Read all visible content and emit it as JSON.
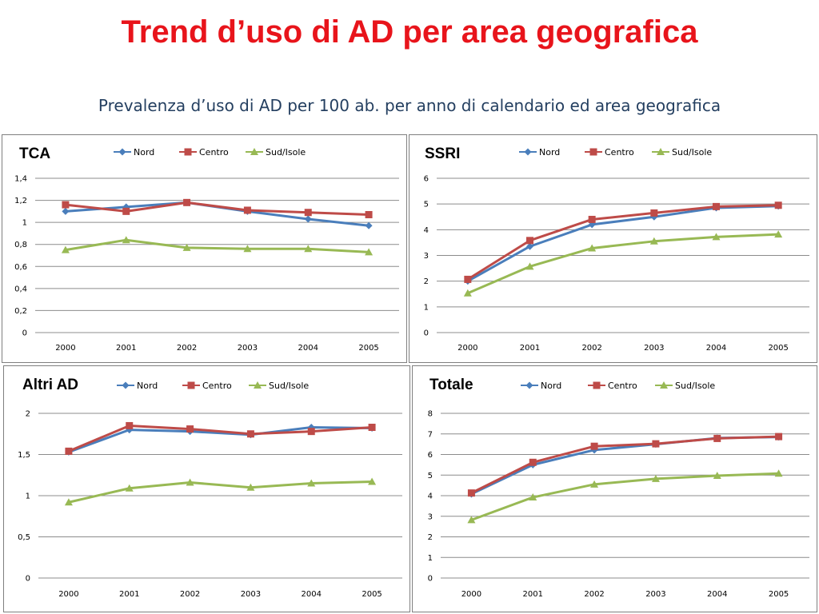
{
  "slide": {
    "title": "Trend d’uso di AD per area geografica",
    "subtitle": "Prevalenza d’uso di AD per 100 ab. per anno di calendario ed area geografica"
  },
  "colors": {
    "title": "#e8141b",
    "subtitle": "#243f60",
    "Nord": "#4a7ebb",
    "Centro": "#be4b48",
    "Sud/Isole": "#98b954"
  },
  "chart_data": [
    {
      "type": "line",
      "title": "TCA",
      "categories": [
        "2000",
        "2001",
        "2002",
        "2003",
        "2004",
        "2005"
      ],
      "yticks": [
        "0",
        "0,2",
        "0,4",
        "0,6",
        "0,8",
        "1",
        "1,2",
        "1,4"
      ],
      "ylim": [
        0,
        1.4
      ],
      "grid": true,
      "legend": "top",
      "series": [
        {
          "name": "Nord",
          "marker": "diamond",
          "values": [
            1.1,
            1.14,
            1.18,
            1.1,
            1.03,
            0.97
          ]
        },
        {
          "name": "Centro",
          "marker": "square",
          "values": [
            1.16,
            1.1,
            1.18,
            1.11,
            1.09,
            1.07
          ]
        },
        {
          "name": "Sud/Isole",
          "marker": "triangle",
          "values": [
            0.75,
            0.84,
            0.77,
            0.76,
            0.76,
            0.73
          ]
        }
      ]
    },
    {
      "type": "line",
      "title": "SSRI",
      "categories": [
        "2000",
        "2001",
        "2002",
        "2003",
        "2004",
        "2005"
      ],
      "yticks": [
        "0",
        "1",
        "2",
        "3",
        "4",
        "5",
        "6"
      ],
      "ylim": [
        0,
        6
      ],
      "grid": true,
      "legend": "top",
      "series": [
        {
          "name": "Nord",
          "marker": "diamond",
          "values": [
            2.0,
            3.35,
            4.2,
            4.5,
            4.85,
            4.92
          ]
        },
        {
          "name": "Centro",
          "marker": "square",
          "values": [
            2.07,
            3.58,
            4.4,
            4.65,
            4.9,
            4.95
          ]
        },
        {
          "name": "Sud/Isole",
          "marker": "triangle",
          "values": [
            1.53,
            2.57,
            3.28,
            3.55,
            3.72,
            3.82
          ]
        }
      ]
    },
    {
      "type": "line",
      "title": "Altri AD",
      "categories": [
        "2000",
        "2001",
        "2002",
        "2003",
        "2004",
        "2005"
      ],
      "yticks": [
        "0",
        "0,5",
        "1",
        "1,5",
        "2"
      ],
      "ylim": [
        0,
        2
      ],
      "grid": true,
      "legend": "top",
      "series": [
        {
          "name": "Nord",
          "marker": "diamond",
          "values": [
            1.53,
            1.8,
            1.78,
            1.74,
            1.83,
            1.82
          ]
        },
        {
          "name": "Centro",
          "marker": "square",
          "values": [
            1.54,
            1.85,
            1.81,
            1.75,
            1.78,
            1.83
          ]
        },
        {
          "name": "Sud/Isole",
          "marker": "triangle",
          "values": [
            0.92,
            1.09,
            1.16,
            1.1,
            1.15,
            1.17
          ]
        }
      ]
    },
    {
      "type": "line",
      "title": "Totale",
      "categories": [
        "2000",
        "2001",
        "2002",
        "2003",
        "2004",
        "2005"
      ],
      "yticks": [
        "0",
        "1",
        "2",
        "3",
        "4",
        "5",
        "6",
        "7",
        "8"
      ],
      "ylim": [
        0,
        8
      ],
      "grid": true,
      "legend": "top",
      "series": [
        {
          "name": "Nord",
          "marker": "diamond",
          "values": [
            4.08,
            5.5,
            6.22,
            6.5,
            6.8,
            6.85
          ]
        },
        {
          "name": "Centro",
          "marker": "square",
          "values": [
            4.13,
            5.62,
            6.4,
            6.52,
            6.78,
            6.87
          ]
        },
        {
          "name": "Sud/Isole",
          "marker": "triangle",
          "values": [
            2.82,
            3.92,
            4.55,
            4.82,
            4.97,
            5.08
          ]
        }
      ]
    }
  ]
}
